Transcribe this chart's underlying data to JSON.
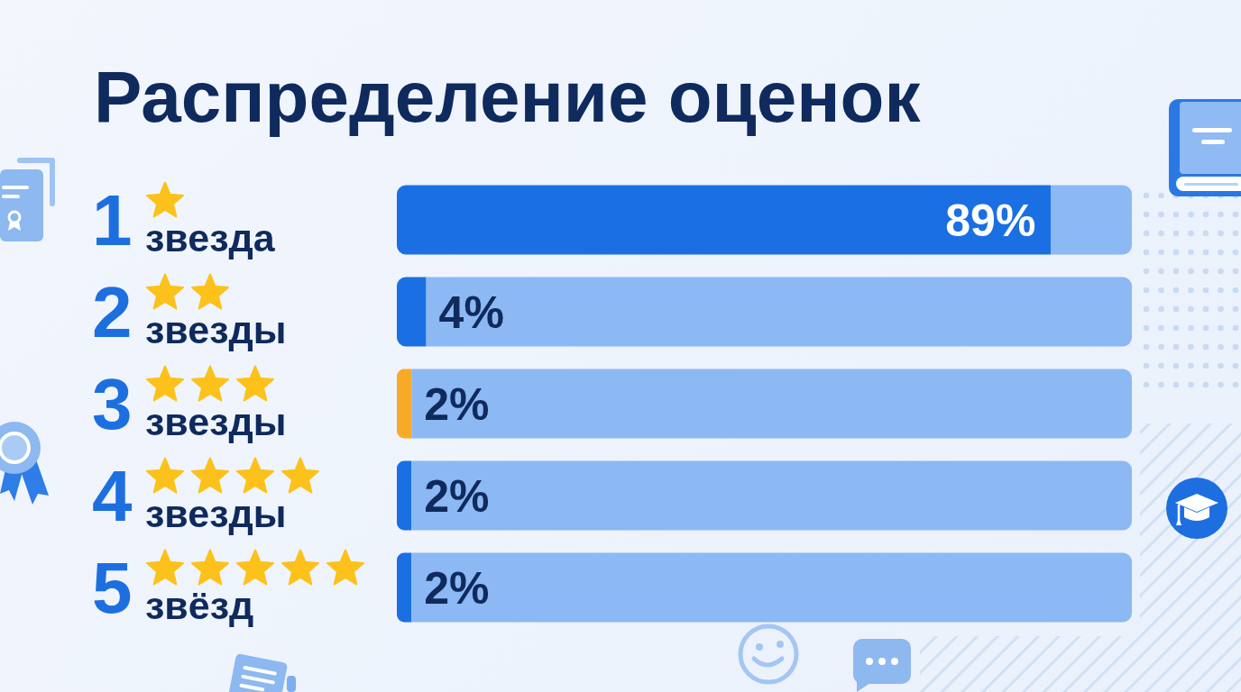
{
  "chart_data": {
    "type": "bar",
    "orientation": "horizontal",
    "stacked": true,
    "title": "Распределение оценок",
    "categories": [
      "1 звезда",
      "2 звезды",
      "3 звезды",
      "4 звезды",
      "5 звёзд"
    ],
    "series": [
      {
        "values": [
          89,
          4,
          2,
          2,
          2
        ],
        "colors": [
          "#1a6fe3",
          "#1a6fe3",
          "#f7a928",
          "#1a6fe3",
          "#1a6fe3"
        ],
        "value_labels": [
          "89%",
          "4%",
          "2%",
          "2%",
          "2%"
        ]
      },
      {
        "values": [
          11,
          96,
          98,
          98,
          98
        ],
        "color": "#8cb8f4"
      }
    ],
    "xlim": [
      0,
      100
    ],
    "tick_labels": "y"
  }
}
